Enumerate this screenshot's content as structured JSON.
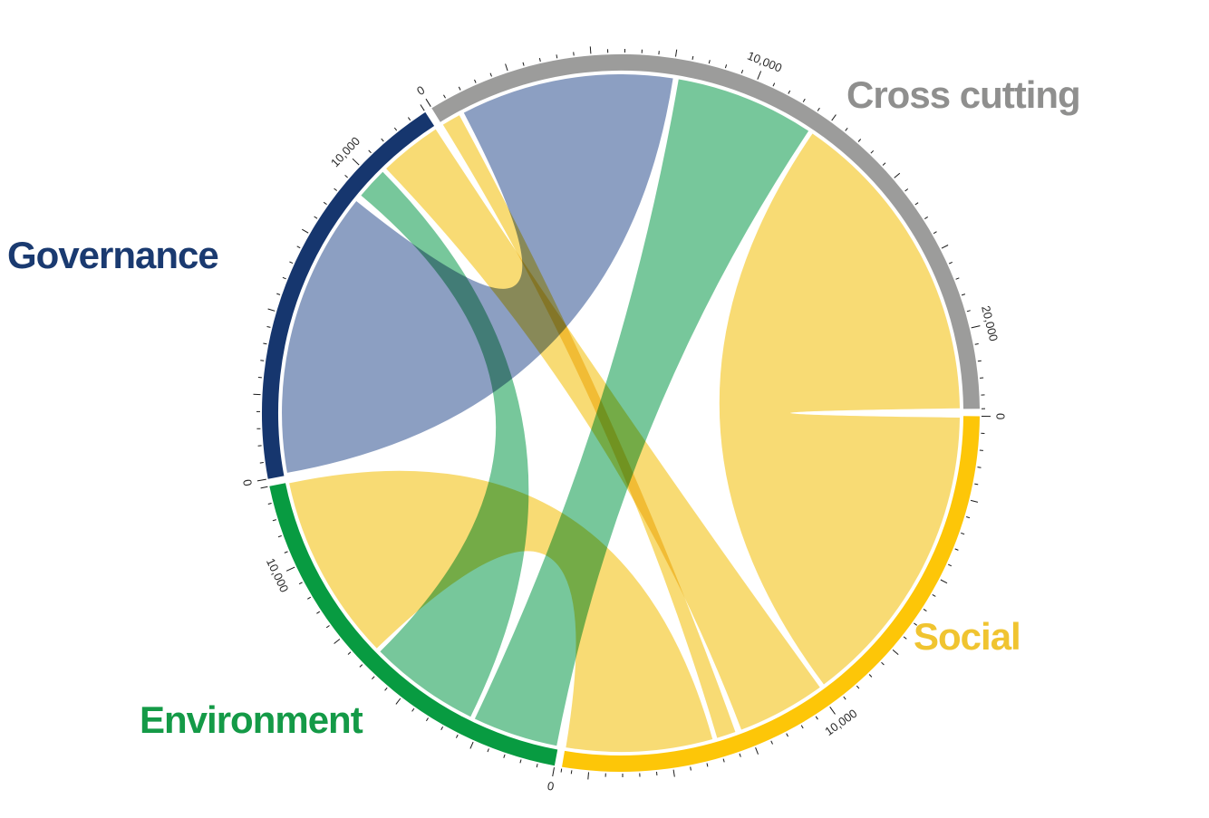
{
  "figure": {
    "kind": "chord-diagram",
    "background_color": "#FFFFFF"
  },
  "chart_data": {
    "type": "chord",
    "title": "",
    "legend_position": "around-circle",
    "grid": false,
    "segments": [
      {
        "id": "governance",
        "label": "Governance",
        "total": 12500,
        "arc_color": "#16366E",
        "label_color": "#1A3A70"
      },
      {
        "id": "cross_cutting",
        "label": "Cross cutting",
        "total": 22400,
        "arc_color": "#9C9C9B",
        "label_color": "#8F8F8E"
      },
      {
        "id": "social",
        "label": "Social",
        "total": 18300,
        "arc_color": "#FDC608",
        "label_color": "#F0C430"
      },
      {
        "id": "environment",
        "label": "Environment",
        "total": 12500,
        "arc_color": "#089B41",
        "label_color": "#149A47"
      }
    ],
    "flows": [
      {
        "source": "governance",
        "target": "cross_cutting",
        "value": 8500,
        "color": "#8C9FC2",
        "source_span": [
          80,
          9120
        ],
        "target_span": [
          780,
          7520
        ]
      },
      {
        "source": "governance",
        "target": "environment",
        "value": 2200,
        "color": "#77C79B",
        "source_span": [
          9350,
          10350
        ],
        "target_span": [
          2900,
          6400
        ]
      },
      {
        "source": "governance",
        "target": "social",
        "value": 2400,
        "color": "#F8DB74",
        "source_span": [
          10500,
          12480
        ],
        "target_span": [
          9900,
          12700
        ]
      },
      {
        "source": "cross_cutting",
        "target": "social",
        "value": 600,
        "color": "#F8DB74",
        "source_span": [
          30,
          620
        ],
        "target_span": [
          12900,
          13500
        ]
      },
      {
        "source": "cross_cutting",
        "target": "environment",
        "value": 3500,
        "color": "#77C79B",
        "source_span": [
          7700,
          12100
        ],
        "target_span": [
          50,
          2750
        ]
      },
      {
        "source": "cross_cutting",
        "target": "social",
        "value": 9900,
        "color": "#F8DB74",
        "source_span": [
          12250,
          22380
        ],
        "target_span": [
          50,
          9750
        ]
      },
      {
        "source": "social",
        "target": "environment",
        "value": 5300,
        "color": "#F8DB74",
        "source_span": [
          13650,
          18280
        ],
        "target_span": [
          6550,
          12470
        ]
      }
    ],
    "axis_ticks": {
      "minor_step": 500,
      "mid_step": 2500,
      "label_step": 10000,
      "visible_labels": [
        "0",
        "10,000",
        "20,000"
      ],
      "tick_color": "#1a1a1a",
      "tick_label_color": "#2a2a2a"
    },
    "layout_reading": {
      "order": [
        "cross_cutting",
        "social",
        "environment",
        "governance"
      ],
      "start_bearing_deg": 328.2,
      "gap_deg": 1.2,
      "direction": "clockwise",
      "zero_position": "counterclockwise_end_of_each_segment"
    }
  }
}
